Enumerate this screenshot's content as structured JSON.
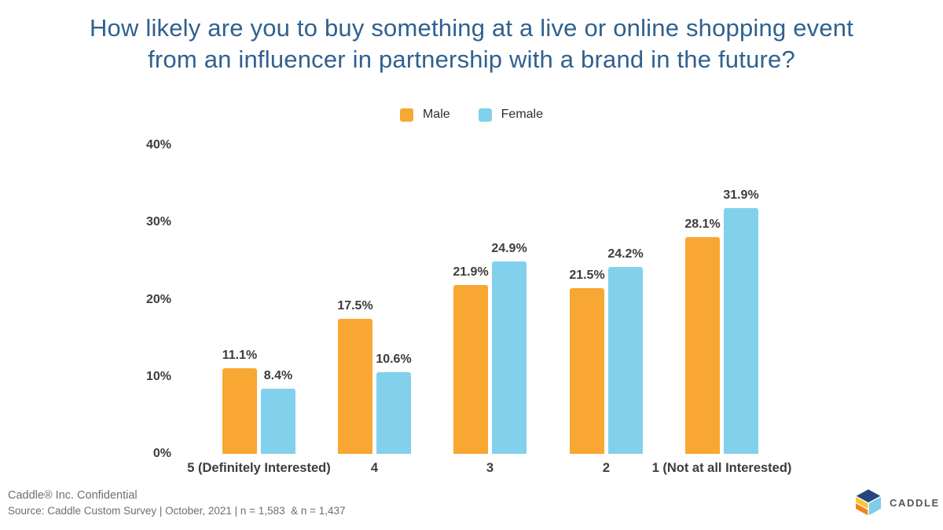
{
  "title": {
    "line1": "How likely are you to buy something at a live or online shopping event",
    "line2": "from an influencer in partnership with a brand in the future?"
  },
  "legend": [
    {
      "label": "Male",
      "color": "#F8A732"
    },
    {
      "label": "Female",
      "color": "#81D1EC"
    }
  ],
  "chart_data": {
    "type": "bar",
    "title": "How likely are you to buy something at a live or online shopping event from an influencer in partnership with a brand in the future?",
    "categories": [
      "5 (Definitely Interested)",
      "4",
      "3",
      "2",
      "1 (Not at all Interested)"
    ],
    "series": [
      {
        "name": "Male",
        "color": "#F8A732",
        "values": [
          11.1,
          17.5,
          21.9,
          21.5,
          28.1
        ],
        "labels": [
          "11.1%",
          "17.5%",
          "21.9%",
          "21.5%",
          "28.1%"
        ]
      },
      {
        "name": "Female",
        "color": "#81D1EC",
        "values": [
          8.4,
          10.6,
          24.9,
          24.2,
          31.9
        ],
        "labels": [
          "8.4%",
          "10.6%",
          "24.9%",
          "24.2%",
          "31.9%"
        ]
      }
    ],
    "value_suffix": "%",
    "xlabel": "",
    "ylabel": "",
    "ylim": [
      0,
      40
    ],
    "ytick_labels": [
      "0%",
      "10%",
      "20%",
      "30%",
      "40%"
    ],
    "grid": false,
    "legend_position": "top-center"
  },
  "footer": {
    "confidential": "Caddle® Inc. Confidential",
    "source": "Source: Caddle Custom Survey | October, 2021 | n = 1,583  & n = 1,437",
    "logo_text": "CADDLE"
  },
  "colors": {
    "title_blue": "#30618F",
    "male_orange": "#F8A732",
    "female_blue": "#81D1EC",
    "label_dark": "#3D3D3D",
    "footer_gray": "#6E6E6E",
    "logo_navy": "#24467C",
    "logo_yellow": "#FFC62E",
    "logo_orange": "#F58220",
    "logo_lightblue": "#7FCDE9"
  }
}
